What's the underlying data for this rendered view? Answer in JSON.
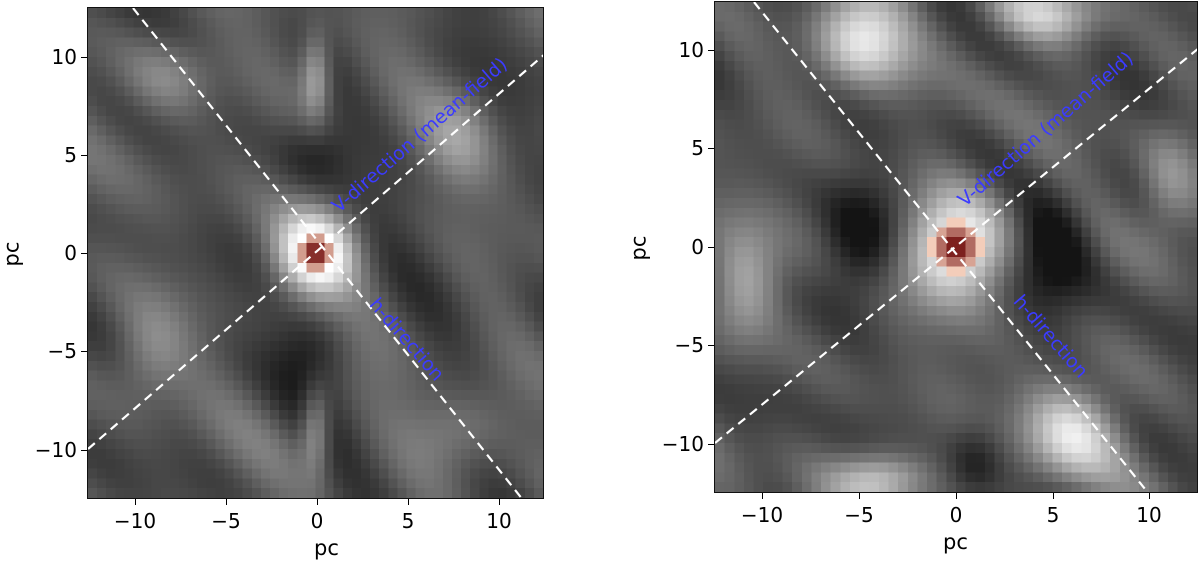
{
  "figure": {
    "annotation_color": "#3b3bff",
    "line_color": "#ffffff",
    "colormap": "grayscale background with red (Reds) central peak"
  },
  "chart_data": [
    {
      "type": "heatmap",
      "panel": "left",
      "title": "",
      "xlabel": "pc",
      "ylabel": "pc",
      "xlim": [
        -12.5,
        12.5
      ],
      "ylim": [
        -12.5,
        12.5
      ],
      "xticks": [
        "−10",
        "−5",
        "0",
        "5",
        "10"
      ],
      "yticks": [
        "10",
        "5",
        "0",
        "−5",
        "−10"
      ],
      "grid": false,
      "peak_center": [
        0,
        0
      ],
      "lines": [
        {
          "name": "V-direction (mean-field)",
          "style": "dashed",
          "angle_deg": 39,
          "through": [
            0,
            0
          ]
        },
        {
          "name": "h-direction",
          "style": "dashed",
          "angle_deg": -51,
          "through": [
            0,
            0
          ]
        }
      ],
      "annotations": [
        "V-direction (mean-field)",
        "h-direction"
      ]
    },
    {
      "type": "heatmap",
      "panel": "right",
      "title": "",
      "xlabel": "pc",
      "ylabel": "pc",
      "xlim": [
        -12.5,
        12.5
      ],
      "ylim": [
        -12.5,
        12.5
      ],
      "xticks": [
        "−10",
        "−5",
        "0",
        "5",
        "10"
      ],
      "yticks": [
        "10",
        "5",
        "0",
        "−5",
        "−10"
      ],
      "grid": false,
      "peak_center": [
        0,
        0
      ],
      "lines": [
        {
          "name": "V-direction (mean-field)",
          "style": "dashed",
          "angle_deg": 39,
          "through": [
            0,
            0
          ]
        },
        {
          "name": "h-direction",
          "style": "dashed",
          "angle_deg": -51,
          "through": [
            0,
            0
          ]
        }
      ],
      "annotations": [
        "V-direction (mean-field)",
        "h-direction"
      ]
    }
  ],
  "panels": {
    "left": {
      "xlabel": "pc",
      "ylabel": "pc",
      "xticks": [
        "−10",
        "−5",
        "0",
        "5",
        "10"
      ],
      "yticks": [
        "10",
        "5",
        "0",
        "−5",
        "−10"
      ],
      "v_label": "V-direction (mean-field)",
      "h_label": "h-direction"
    },
    "right": {
      "xlabel": "pc",
      "ylabel": "pc",
      "xticks": [
        "−10",
        "−5",
        "0",
        "5",
        "10"
      ],
      "yticks": [
        "10",
        "5",
        "0",
        "−5",
        "−10"
      ],
      "v_label": "V-direction (mean-field)",
      "h_label": "h-direction"
    }
  }
}
